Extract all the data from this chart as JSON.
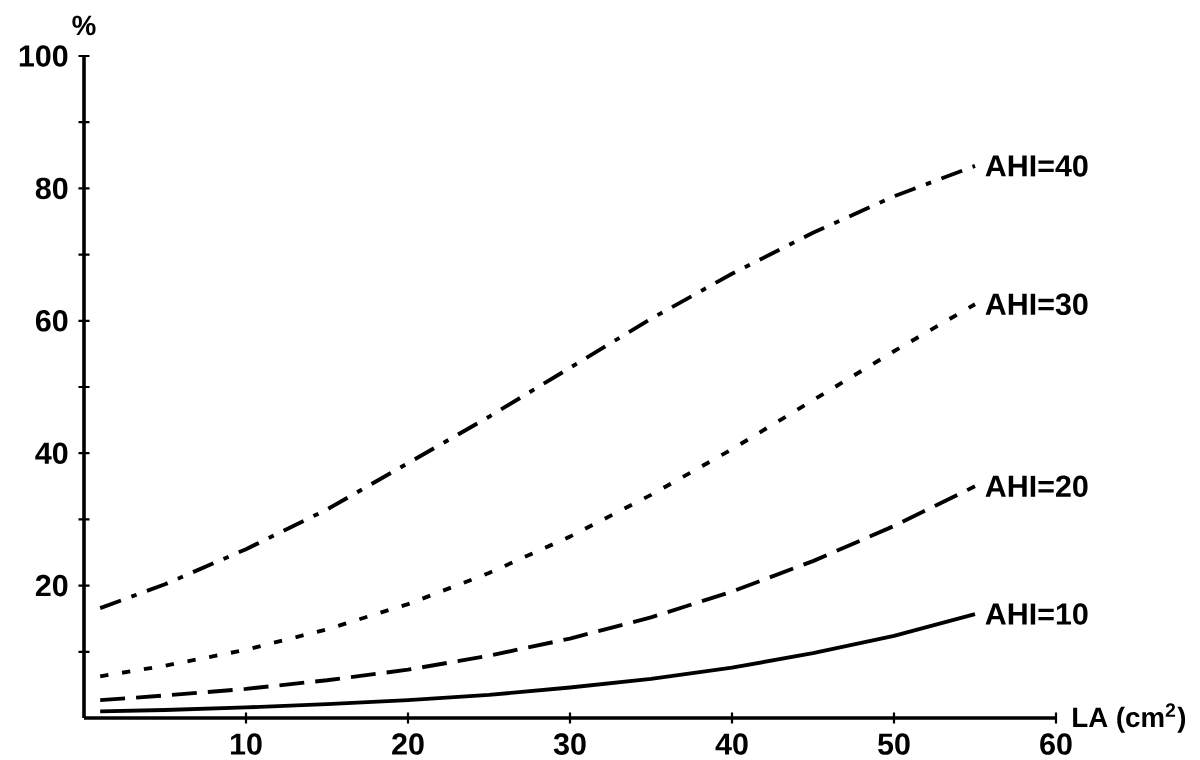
{
  "chart_data": {
    "type": "line",
    "xlabel": "LA (cm$^{2}$)",
    "ylabel": "%",
    "xlim": [
      0,
      60
    ],
    "ylim": [
      0,
      100
    ],
    "xticks": [
      10,
      20,
      30,
      40,
      50,
      60
    ],
    "yticks": [
      {
        "value": 10,
        "label": null
      },
      20,
      {
        "value": 30,
        "label": null
      },
      40,
      {
        "value": 50,
        "label": null
      },
      60,
      {
        "value": 70,
        "label": null
      },
      80,
      {
        "value": 90,
        "label": null
      },
      100
    ],
    "x": [
      1,
      5,
      10,
      15,
      20,
      25,
      30,
      35,
      40,
      45,
      50,
      55
    ],
    "grid": false,
    "legend": false,
    "marker": "none",
    "series": [
      {
        "name": "AHI=40",
        "color": "#000000",
        "line_style": "dashdot",
        "values": [
          16.6,
          20.2,
          25.5,
          31.5,
          38.5,
          45.5,
          52.9,
          60.3,
          67.1,
          73.3,
          78.8,
          83.4
        ]
      },
      {
        "name": "AHI=30",
        "color": "#000000",
        "line_style": "dotted",
        "values": [
          6.3,
          7.9,
          10.3,
          13.4,
          17.2,
          21.9,
          27.4,
          33.7,
          40.6,
          48.0,
          55.4,
          62.5
        ]
      },
      {
        "name": "AHI=20",
        "color": "#000000",
        "line_style": "dashed",
        "values": [
          2.7,
          3.4,
          4.4,
          5.7,
          7.3,
          9.4,
          12.0,
          15.2,
          19.1,
          23.7,
          29.0,
          35.0
        ]
      },
      {
        "name": "AHI=10",
        "color": "#000000",
        "line_style": "solid",
        "values": [
          1.0,
          1.2,
          1.6,
          2.1,
          2.7,
          3.5,
          4.6,
          5.9,
          7.6,
          9.8,
          12.4,
          15.7
        ]
      }
    ]
  }
}
